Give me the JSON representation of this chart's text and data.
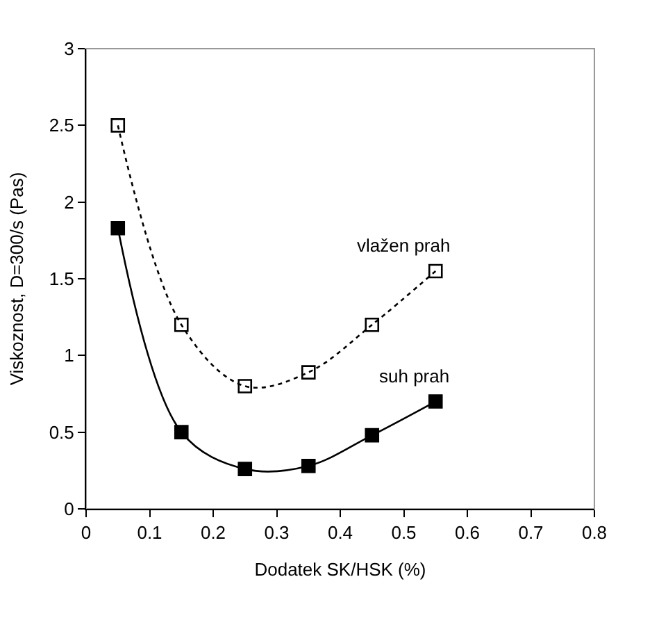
{
  "chart_data": {
    "type": "line",
    "xlabel": "Dodatek SK/HSK (%)",
    "ylabel": "Viskoznost, D=300/s (Pas)",
    "x": [
      0.05,
      0.15,
      0.25,
      0.35,
      0.45,
      0.55
    ],
    "series": [
      {
        "name": "vlažen prah",
        "color": "#000000",
        "values": [
          2.5,
          1.2,
          0.8,
          0.89,
          1.2,
          1.55
        ],
        "line_style": "dotted",
        "marker": "square-open"
      },
      {
        "name": "suh prah",
        "color": "#000000",
        "values": [
          1.83,
          0.5,
          0.26,
          0.28,
          0.48,
          0.7
        ],
        "line_style": "solid",
        "marker": "square"
      }
    ],
    "xlim": [
      0,
      0.8
    ],
    "xticks": [
      0,
      0.1,
      0.2,
      0.3,
      0.4,
      0.5,
      0.6,
      0.7,
      0.8
    ],
    "ylim": [
      0,
      3
    ],
    "yticks": [
      0,
      0.5,
      1,
      1.5,
      2,
      2.5,
      3
    ],
    "grid": false,
    "legend": false
  }
}
